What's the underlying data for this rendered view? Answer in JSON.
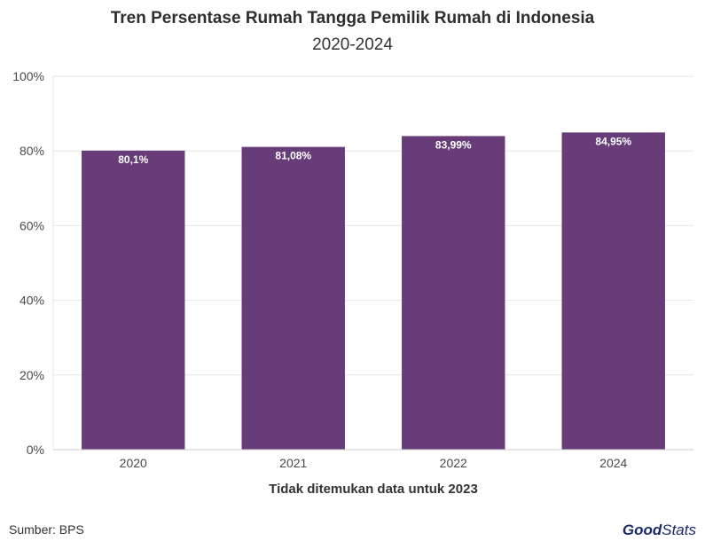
{
  "header": {
    "title": "Tren Persentase Rumah Tangga Pemilik Rumah di Indonesia",
    "subtitle": "2020-2024"
  },
  "footer": {
    "source": "Sumber: BPS",
    "logo_good": "Good",
    "logo_stats": "Stats"
  },
  "colors": {
    "bar": "#673c78",
    "grid": "#e6e6e6",
    "axis_text": "#4a4a4a",
    "label_text": "#ffffff"
  },
  "chart_data": {
    "type": "bar",
    "title": "Tren Persentase Rumah Tangga Pemilik Rumah di Indonesia",
    "subtitle": "2020-2024",
    "categories": [
      "2020",
      "2021",
      "2022",
      "2024"
    ],
    "values": [
      80.1,
      81.08,
      83.99,
      84.95
    ],
    "data_labels": [
      "80,1%",
      "81,08%",
      "83,99%",
      "84,95%"
    ],
    "xlabel": "Tidak ditemukan data untuk 2023",
    "ylabel": "",
    "ylim": [
      0,
      100
    ],
    "y_ticks": [
      0,
      20,
      40,
      60,
      80,
      100
    ],
    "y_tick_labels": [
      "0%",
      "20%",
      "40%",
      "60%",
      "80%",
      "100%"
    ],
    "grid": true,
    "legend": "none"
  }
}
